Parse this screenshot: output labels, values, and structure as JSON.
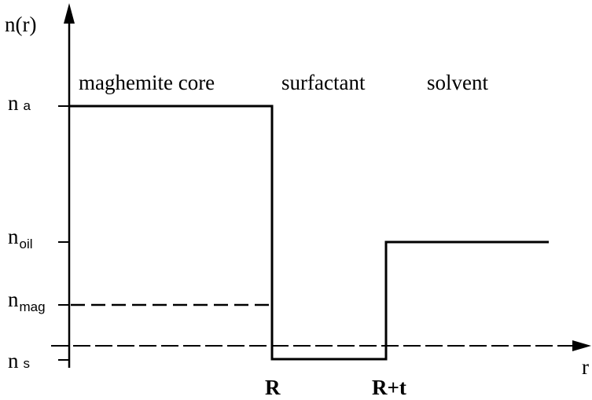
{
  "axes": {
    "y_label": "n(r)",
    "x_label": "r"
  },
  "regions": [
    "maghemite core",
    "surfactant",
    "solvent"
  ],
  "levels": [
    {
      "symbol": "n",
      "subscript": "a"
    },
    {
      "symbol": "n",
      "subscript": "oil"
    },
    {
      "symbol": "n",
      "subscript": "mag"
    },
    {
      "symbol": "n",
      "subscript": "s"
    }
  ],
  "positions": [
    "R",
    "R+t"
  ]
}
